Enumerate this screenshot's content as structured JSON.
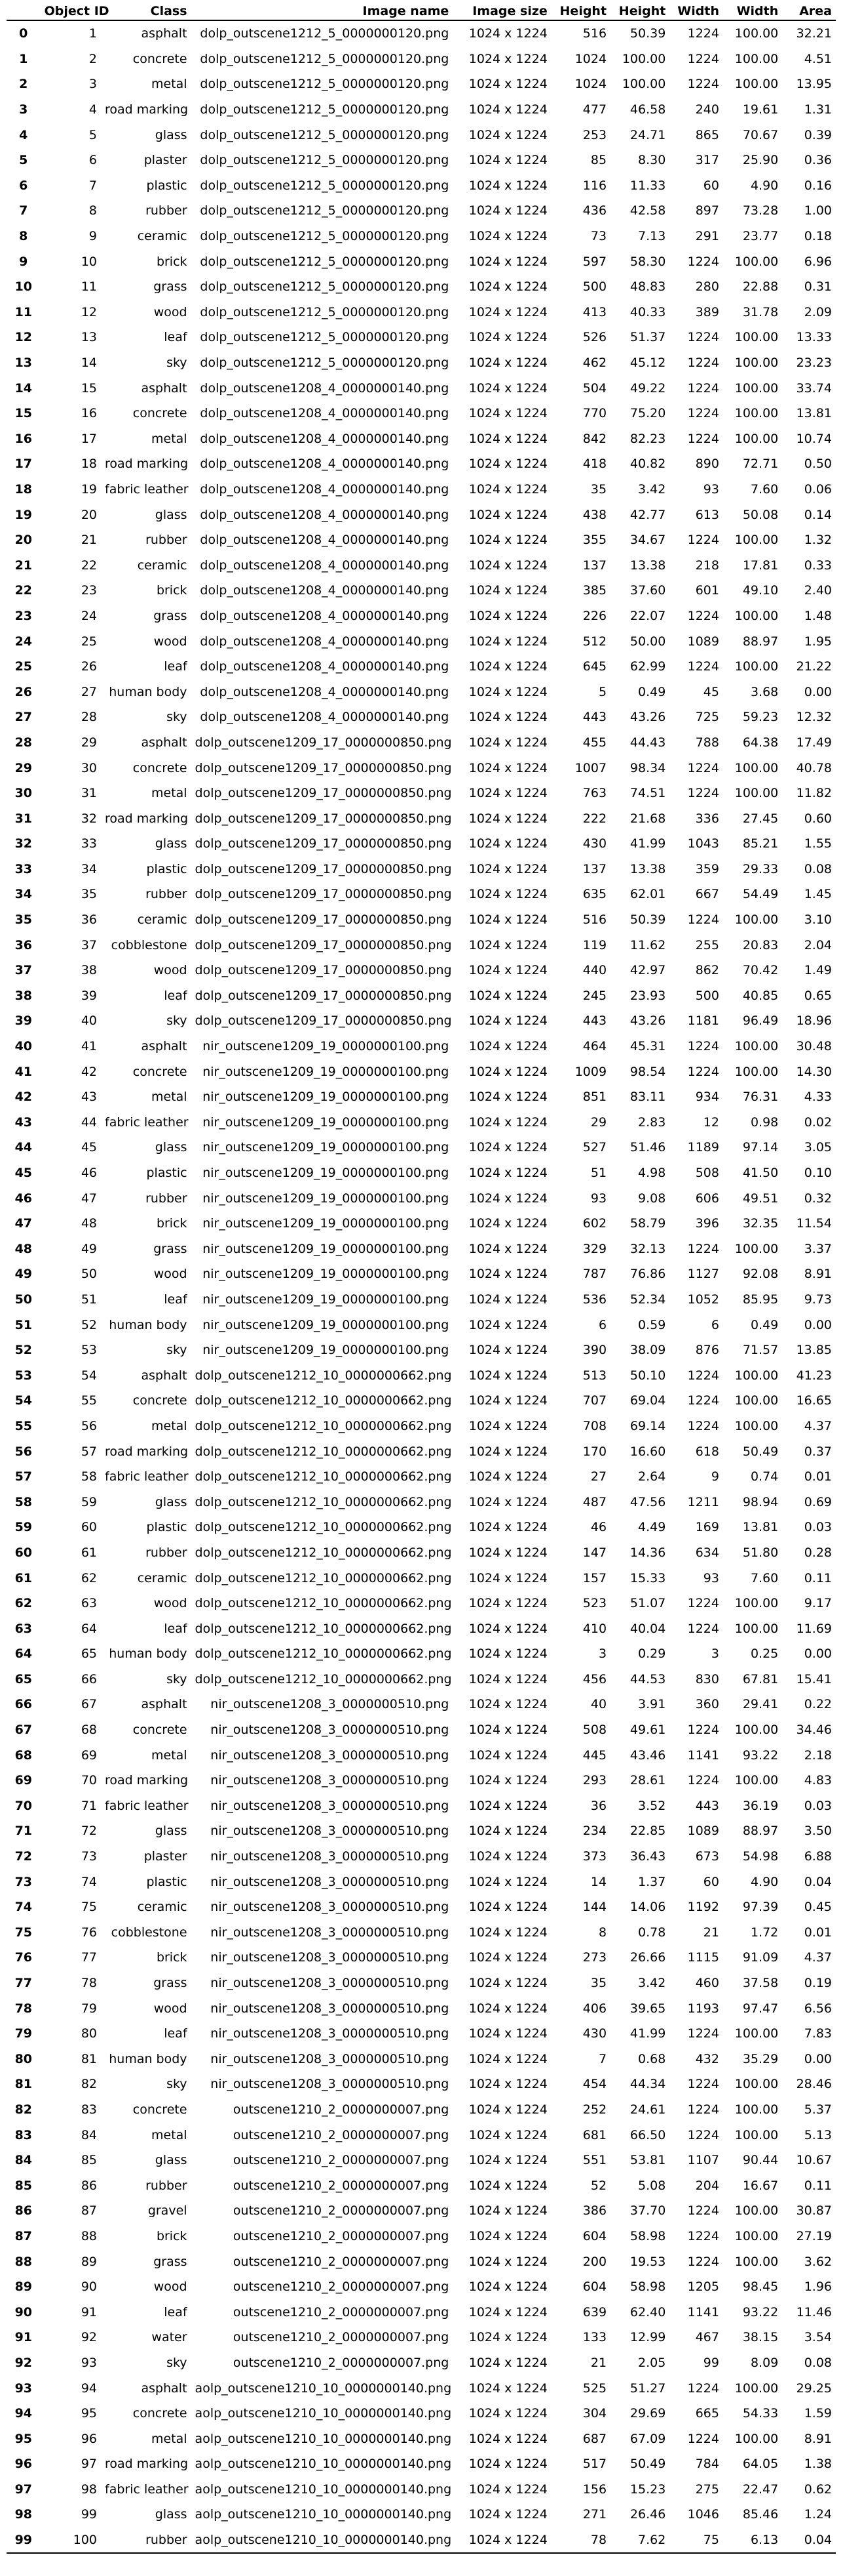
{
  "columns": [
    "",
    "Object ID",
    "Class",
    "Image name",
    "Image size",
    "Height",
    "Height",
    "Width",
    "Width",
    "Area"
  ],
  "rows": [
    [
      "0",
      "1",
      "asphalt",
      "dolp_outscene1212_5_0000000120.png",
      "1024 x 1224",
      "516",
      "50.39",
      "1224",
      "100.00",
      "32.21"
    ],
    [
      "1",
      "2",
      "concrete",
      "dolp_outscene1212_5_0000000120.png",
      "1024 x 1224",
      "1024",
      "100.00",
      "1224",
      "100.00",
      "4.51"
    ],
    [
      "2",
      "3",
      "metal",
      "dolp_outscene1212_5_0000000120.png",
      "1024 x 1224",
      "1024",
      "100.00",
      "1224",
      "100.00",
      "13.95"
    ],
    [
      "3",
      "4",
      "road marking",
      "dolp_outscene1212_5_0000000120.png",
      "1024 x 1224",
      "477",
      "46.58",
      "240",
      "19.61",
      "1.31"
    ],
    [
      "4",
      "5",
      "glass",
      "dolp_outscene1212_5_0000000120.png",
      "1024 x 1224",
      "253",
      "24.71",
      "865",
      "70.67",
      "0.39"
    ],
    [
      "5",
      "6",
      "plaster",
      "dolp_outscene1212_5_0000000120.png",
      "1024 x 1224",
      "85",
      "8.30",
      "317",
      "25.90",
      "0.36"
    ],
    [
      "6",
      "7",
      "plastic",
      "dolp_outscene1212_5_0000000120.png",
      "1024 x 1224",
      "116",
      "11.33",
      "60",
      "4.90",
      "0.16"
    ],
    [
      "7",
      "8",
      "rubber",
      "dolp_outscene1212_5_0000000120.png",
      "1024 x 1224",
      "436",
      "42.58",
      "897",
      "73.28",
      "1.00"
    ],
    [
      "8",
      "9",
      "ceramic",
      "dolp_outscene1212_5_0000000120.png",
      "1024 x 1224",
      "73",
      "7.13",
      "291",
      "23.77",
      "0.18"
    ],
    [
      "9",
      "10",
      "brick",
      "dolp_outscene1212_5_0000000120.png",
      "1024 x 1224",
      "597",
      "58.30",
      "1224",
      "100.00",
      "6.96"
    ],
    [
      "10",
      "11",
      "grass",
      "dolp_outscene1212_5_0000000120.png",
      "1024 x 1224",
      "500",
      "48.83",
      "280",
      "22.88",
      "0.31"
    ],
    [
      "11",
      "12",
      "wood",
      "dolp_outscene1212_5_0000000120.png",
      "1024 x 1224",
      "413",
      "40.33",
      "389",
      "31.78",
      "2.09"
    ],
    [
      "12",
      "13",
      "leaf",
      "dolp_outscene1212_5_0000000120.png",
      "1024 x 1224",
      "526",
      "51.37",
      "1224",
      "100.00",
      "13.33"
    ],
    [
      "13",
      "14",
      "sky",
      "dolp_outscene1212_5_0000000120.png",
      "1024 x 1224",
      "462",
      "45.12",
      "1224",
      "100.00",
      "23.23"
    ],
    [
      "14",
      "15",
      "asphalt",
      "dolp_outscene1208_4_0000000140.png",
      "1024 x 1224",
      "504",
      "49.22",
      "1224",
      "100.00",
      "33.74"
    ],
    [
      "15",
      "16",
      "concrete",
      "dolp_outscene1208_4_0000000140.png",
      "1024 x 1224",
      "770",
      "75.20",
      "1224",
      "100.00",
      "13.81"
    ],
    [
      "16",
      "17",
      "metal",
      "dolp_outscene1208_4_0000000140.png",
      "1024 x 1224",
      "842",
      "82.23",
      "1224",
      "100.00",
      "10.74"
    ],
    [
      "17",
      "18",
      "road marking",
      "dolp_outscene1208_4_0000000140.png",
      "1024 x 1224",
      "418",
      "40.82",
      "890",
      "72.71",
      "0.50"
    ],
    [
      "18",
      "19",
      "fabric leather",
      "dolp_outscene1208_4_0000000140.png",
      "1024 x 1224",
      "35",
      "3.42",
      "93",
      "7.60",
      "0.06"
    ],
    [
      "19",
      "20",
      "glass",
      "dolp_outscene1208_4_0000000140.png",
      "1024 x 1224",
      "438",
      "42.77",
      "613",
      "50.08",
      "0.14"
    ],
    [
      "20",
      "21",
      "rubber",
      "dolp_outscene1208_4_0000000140.png",
      "1024 x 1224",
      "355",
      "34.67",
      "1224",
      "100.00",
      "1.32"
    ],
    [
      "21",
      "22",
      "ceramic",
      "dolp_outscene1208_4_0000000140.png",
      "1024 x 1224",
      "137",
      "13.38",
      "218",
      "17.81",
      "0.33"
    ],
    [
      "22",
      "23",
      "brick",
      "dolp_outscene1208_4_0000000140.png",
      "1024 x 1224",
      "385",
      "37.60",
      "601",
      "49.10",
      "2.40"
    ],
    [
      "23",
      "24",
      "grass",
      "dolp_outscene1208_4_0000000140.png",
      "1024 x 1224",
      "226",
      "22.07",
      "1224",
      "100.00",
      "1.48"
    ],
    [
      "24",
      "25",
      "wood",
      "dolp_outscene1208_4_0000000140.png",
      "1024 x 1224",
      "512",
      "50.00",
      "1089",
      "88.97",
      "1.95"
    ],
    [
      "25",
      "26",
      "leaf",
      "dolp_outscene1208_4_0000000140.png",
      "1024 x 1224",
      "645",
      "62.99",
      "1224",
      "100.00",
      "21.22"
    ],
    [
      "26",
      "27",
      "human body",
      "dolp_outscene1208_4_0000000140.png",
      "1024 x 1224",
      "5",
      "0.49",
      "45",
      "3.68",
      "0.00"
    ],
    [
      "27",
      "28",
      "sky",
      "dolp_outscene1208_4_0000000140.png",
      "1024 x 1224",
      "443",
      "43.26",
      "725",
      "59.23",
      "12.32"
    ],
    [
      "28",
      "29",
      "asphalt",
      "dolp_outscene1209_17_0000000850.png",
      "1024 x 1224",
      "455",
      "44.43",
      "788",
      "64.38",
      "17.49"
    ],
    [
      "29",
      "30",
      "concrete",
      "dolp_outscene1209_17_0000000850.png",
      "1024 x 1224",
      "1007",
      "98.34",
      "1224",
      "100.00",
      "40.78"
    ],
    [
      "30",
      "31",
      "metal",
      "dolp_outscene1209_17_0000000850.png",
      "1024 x 1224",
      "763",
      "74.51",
      "1224",
      "100.00",
      "11.82"
    ],
    [
      "31",
      "32",
      "road marking",
      "dolp_outscene1209_17_0000000850.png",
      "1024 x 1224",
      "222",
      "21.68",
      "336",
      "27.45",
      "0.60"
    ],
    [
      "32",
      "33",
      "glass",
      "dolp_outscene1209_17_0000000850.png",
      "1024 x 1224",
      "430",
      "41.99",
      "1043",
      "85.21",
      "1.55"
    ],
    [
      "33",
      "34",
      "plastic",
      "dolp_outscene1209_17_0000000850.png",
      "1024 x 1224",
      "137",
      "13.38",
      "359",
      "29.33",
      "0.08"
    ],
    [
      "34",
      "35",
      "rubber",
      "dolp_outscene1209_17_0000000850.png",
      "1024 x 1224",
      "635",
      "62.01",
      "667",
      "54.49",
      "1.45"
    ],
    [
      "35",
      "36",
      "ceramic",
      "dolp_outscene1209_17_0000000850.png",
      "1024 x 1224",
      "516",
      "50.39",
      "1224",
      "100.00",
      "3.10"
    ],
    [
      "36",
      "37",
      "cobblestone",
      "dolp_outscene1209_17_0000000850.png",
      "1024 x 1224",
      "119",
      "11.62",
      "255",
      "20.83",
      "2.04"
    ],
    [
      "37",
      "38",
      "wood",
      "dolp_outscene1209_17_0000000850.png",
      "1024 x 1224",
      "440",
      "42.97",
      "862",
      "70.42",
      "1.49"
    ],
    [
      "38",
      "39",
      "leaf",
      "dolp_outscene1209_17_0000000850.png",
      "1024 x 1224",
      "245",
      "23.93",
      "500",
      "40.85",
      "0.65"
    ],
    [
      "39",
      "40",
      "sky",
      "dolp_outscene1209_17_0000000850.png",
      "1024 x 1224",
      "443",
      "43.26",
      "1181",
      "96.49",
      "18.96"
    ],
    [
      "40",
      "41",
      "asphalt",
      "nir_outscene1209_19_0000000100.png",
      "1024 x 1224",
      "464",
      "45.31",
      "1224",
      "100.00",
      "30.48"
    ],
    [
      "41",
      "42",
      "concrete",
      "nir_outscene1209_19_0000000100.png",
      "1024 x 1224",
      "1009",
      "98.54",
      "1224",
      "100.00",
      "14.30"
    ],
    [
      "42",
      "43",
      "metal",
      "nir_outscene1209_19_0000000100.png",
      "1024 x 1224",
      "851",
      "83.11",
      "934",
      "76.31",
      "4.33"
    ],
    [
      "43",
      "44",
      "fabric leather",
      "nir_outscene1209_19_0000000100.png",
      "1024 x 1224",
      "29",
      "2.83",
      "12",
      "0.98",
      "0.02"
    ],
    [
      "44",
      "45",
      "glass",
      "nir_outscene1209_19_0000000100.png",
      "1024 x 1224",
      "527",
      "51.46",
      "1189",
      "97.14",
      "3.05"
    ],
    [
      "45",
      "46",
      "plastic",
      "nir_outscene1209_19_0000000100.png",
      "1024 x 1224",
      "51",
      "4.98",
      "508",
      "41.50",
      "0.10"
    ],
    [
      "46",
      "47",
      "rubber",
      "nir_outscene1209_19_0000000100.png",
      "1024 x 1224",
      "93",
      "9.08",
      "606",
      "49.51",
      "0.32"
    ],
    [
      "47",
      "48",
      "brick",
      "nir_outscene1209_19_0000000100.png",
      "1024 x 1224",
      "602",
      "58.79",
      "396",
      "32.35",
      "11.54"
    ],
    [
      "48",
      "49",
      "grass",
      "nir_outscene1209_19_0000000100.png",
      "1024 x 1224",
      "329",
      "32.13",
      "1224",
      "100.00",
      "3.37"
    ],
    [
      "49",
      "50",
      "wood",
      "nir_outscene1209_19_0000000100.png",
      "1024 x 1224",
      "787",
      "76.86",
      "1127",
      "92.08",
      "8.91"
    ],
    [
      "50",
      "51",
      "leaf",
      "nir_outscene1209_19_0000000100.png",
      "1024 x 1224",
      "536",
      "52.34",
      "1052",
      "85.95",
      "9.73"
    ],
    [
      "51",
      "52",
      "human body",
      "nir_outscene1209_19_0000000100.png",
      "1024 x 1224",
      "6",
      "0.59",
      "6",
      "0.49",
      "0.00"
    ],
    [
      "52",
      "53",
      "sky",
      "nir_outscene1209_19_0000000100.png",
      "1024 x 1224",
      "390",
      "38.09",
      "876",
      "71.57",
      "13.85"
    ],
    [
      "53",
      "54",
      "asphalt",
      "dolp_outscene1212_10_0000000662.png",
      "1024 x 1224",
      "513",
      "50.10",
      "1224",
      "100.00",
      "41.23"
    ],
    [
      "54",
      "55",
      "concrete",
      "dolp_outscene1212_10_0000000662.png",
      "1024 x 1224",
      "707",
      "69.04",
      "1224",
      "100.00",
      "16.65"
    ],
    [
      "55",
      "56",
      "metal",
      "dolp_outscene1212_10_0000000662.png",
      "1024 x 1224",
      "708",
      "69.14",
      "1224",
      "100.00",
      "4.37"
    ],
    [
      "56",
      "57",
      "road marking",
      "dolp_outscene1212_10_0000000662.png",
      "1024 x 1224",
      "170",
      "16.60",
      "618",
      "50.49",
      "0.37"
    ],
    [
      "57",
      "58",
      "fabric leather",
      "dolp_outscene1212_10_0000000662.png",
      "1024 x 1224",
      "27",
      "2.64",
      "9",
      "0.74",
      "0.01"
    ],
    [
      "58",
      "59",
      "glass",
      "dolp_outscene1212_10_0000000662.png",
      "1024 x 1224",
      "487",
      "47.56",
      "1211",
      "98.94",
      "0.69"
    ],
    [
      "59",
      "60",
      "plastic",
      "dolp_outscene1212_10_0000000662.png",
      "1024 x 1224",
      "46",
      "4.49",
      "169",
      "13.81",
      "0.03"
    ],
    [
      "60",
      "61",
      "rubber",
      "dolp_outscene1212_10_0000000662.png",
      "1024 x 1224",
      "147",
      "14.36",
      "634",
      "51.80",
      "0.28"
    ],
    [
      "61",
      "62",
      "ceramic",
      "dolp_outscene1212_10_0000000662.png",
      "1024 x 1224",
      "157",
      "15.33",
      "93",
      "7.60",
      "0.11"
    ],
    [
      "62",
      "63",
      "wood",
      "dolp_outscene1212_10_0000000662.png",
      "1024 x 1224",
      "523",
      "51.07",
      "1224",
      "100.00",
      "9.17"
    ],
    [
      "63",
      "64",
      "leaf",
      "dolp_outscene1212_10_0000000662.png",
      "1024 x 1224",
      "410",
      "40.04",
      "1224",
      "100.00",
      "11.69"
    ],
    [
      "64",
      "65",
      "human body",
      "dolp_outscene1212_10_0000000662.png",
      "1024 x 1224",
      "3",
      "0.29",
      "3",
      "0.25",
      "0.00"
    ],
    [
      "65",
      "66",
      "sky",
      "dolp_outscene1212_10_0000000662.png",
      "1024 x 1224",
      "456",
      "44.53",
      "830",
      "67.81",
      "15.41"
    ],
    [
      "66",
      "67",
      "asphalt",
      "nir_outscene1208_3_0000000510.png",
      "1024 x 1224",
      "40",
      "3.91",
      "360",
      "29.41",
      "0.22"
    ],
    [
      "67",
      "68",
      "concrete",
      "nir_outscene1208_3_0000000510.png",
      "1024 x 1224",
      "508",
      "49.61",
      "1224",
      "100.00",
      "34.46"
    ],
    [
      "68",
      "69",
      "metal",
      "nir_outscene1208_3_0000000510.png",
      "1024 x 1224",
      "445",
      "43.46",
      "1141",
      "93.22",
      "2.18"
    ],
    [
      "69",
      "70",
      "road marking",
      "nir_outscene1208_3_0000000510.png",
      "1024 x 1224",
      "293",
      "28.61",
      "1224",
      "100.00",
      "4.83"
    ],
    [
      "70",
      "71",
      "fabric leather",
      "nir_outscene1208_3_0000000510.png",
      "1024 x 1224",
      "36",
      "3.52",
      "443",
      "36.19",
      "0.03"
    ],
    [
      "71",
      "72",
      "glass",
      "nir_outscene1208_3_0000000510.png",
      "1024 x 1224",
      "234",
      "22.85",
      "1089",
      "88.97",
      "3.50"
    ],
    [
      "72",
      "73",
      "plaster",
      "nir_outscene1208_3_0000000510.png",
      "1024 x 1224",
      "373",
      "36.43",
      "673",
      "54.98",
      "6.88"
    ],
    [
      "73",
      "74",
      "plastic",
      "nir_outscene1208_3_0000000510.png",
      "1024 x 1224",
      "14",
      "1.37",
      "60",
      "4.90",
      "0.04"
    ],
    [
      "74",
      "75",
      "ceramic",
      "nir_outscene1208_3_0000000510.png",
      "1024 x 1224",
      "144",
      "14.06",
      "1192",
      "97.39",
      "0.45"
    ],
    [
      "75",
      "76",
      "cobblestone",
      "nir_outscene1208_3_0000000510.png",
      "1024 x 1224",
      "8",
      "0.78",
      "21",
      "1.72",
      "0.01"
    ],
    [
      "76",
      "77",
      "brick",
      "nir_outscene1208_3_0000000510.png",
      "1024 x 1224",
      "273",
      "26.66",
      "1115",
      "91.09",
      "4.37"
    ],
    [
      "77",
      "78",
      "grass",
      "nir_outscene1208_3_0000000510.png",
      "1024 x 1224",
      "35",
      "3.42",
      "460",
      "37.58",
      "0.19"
    ],
    [
      "78",
      "79",
      "wood",
      "nir_outscene1208_3_0000000510.png",
      "1024 x 1224",
      "406",
      "39.65",
      "1193",
      "97.47",
      "6.56"
    ],
    [
      "79",
      "80",
      "leaf",
      "nir_outscene1208_3_0000000510.png",
      "1024 x 1224",
      "430",
      "41.99",
      "1224",
      "100.00",
      "7.83"
    ],
    [
      "80",
      "81",
      "human body",
      "nir_outscene1208_3_0000000510.png",
      "1024 x 1224",
      "7",
      "0.68",
      "432",
      "35.29",
      "0.00"
    ],
    [
      "81",
      "82",
      "sky",
      "nir_outscene1208_3_0000000510.png",
      "1024 x 1224",
      "454",
      "44.34",
      "1224",
      "100.00",
      "28.46"
    ],
    [
      "82",
      "83",
      "concrete",
      "outscene1210_2_0000000007.png",
      "1024 x 1224",
      "252",
      "24.61",
      "1224",
      "100.00",
      "5.37"
    ],
    [
      "83",
      "84",
      "metal",
      "outscene1210_2_0000000007.png",
      "1024 x 1224",
      "681",
      "66.50",
      "1224",
      "100.00",
      "5.13"
    ],
    [
      "84",
      "85",
      "glass",
      "outscene1210_2_0000000007.png",
      "1024 x 1224",
      "551",
      "53.81",
      "1107",
      "90.44",
      "10.67"
    ],
    [
      "85",
      "86",
      "rubber",
      "outscene1210_2_0000000007.png",
      "1024 x 1224",
      "52",
      "5.08",
      "204",
      "16.67",
      "0.11"
    ],
    [
      "86",
      "87",
      "gravel",
      "outscene1210_2_0000000007.png",
      "1024 x 1224",
      "386",
      "37.70",
      "1224",
      "100.00",
      "30.87"
    ],
    [
      "87",
      "88",
      "brick",
      "outscene1210_2_0000000007.png",
      "1024 x 1224",
      "604",
      "58.98",
      "1224",
      "100.00",
      "27.19"
    ],
    [
      "88",
      "89",
      "grass",
      "outscene1210_2_0000000007.png",
      "1024 x 1224",
      "200",
      "19.53",
      "1224",
      "100.00",
      "3.62"
    ],
    [
      "89",
      "90",
      "wood",
      "outscene1210_2_0000000007.png",
      "1024 x 1224",
      "604",
      "58.98",
      "1205",
      "98.45",
      "1.96"
    ],
    [
      "90",
      "91",
      "leaf",
      "outscene1210_2_0000000007.png",
      "1024 x 1224",
      "639",
      "62.40",
      "1141",
      "93.22",
      "11.46"
    ],
    [
      "91",
      "92",
      "water",
      "outscene1210_2_0000000007.png",
      "1024 x 1224",
      "133",
      "12.99",
      "467",
      "38.15",
      "3.54"
    ],
    [
      "92",
      "93",
      "sky",
      "outscene1210_2_0000000007.png",
      "1024 x 1224",
      "21",
      "2.05",
      "99",
      "8.09",
      "0.08"
    ],
    [
      "93",
      "94",
      "asphalt",
      "aolp_outscene1210_10_0000000140.png",
      "1024 x 1224",
      "525",
      "51.27",
      "1224",
      "100.00",
      "29.25"
    ],
    [
      "94",
      "95",
      "concrete",
      "aolp_outscene1210_10_0000000140.png",
      "1024 x 1224",
      "304",
      "29.69",
      "665",
      "54.33",
      "1.59"
    ],
    [
      "95",
      "96",
      "metal",
      "aolp_outscene1210_10_0000000140.png",
      "1024 x 1224",
      "687",
      "67.09",
      "1224",
      "100.00",
      "8.91"
    ],
    [
      "96",
      "97",
      "road marking",
      "aolp_outscene1210_10_0000000140.png",
      "1024 x 1224",
      "517",
      "50.49",
      "784",
      "64.05",
      "1.38"
    ],
    [
      "97",
      "98",
      "fabric leather",
      "aolp_outscene1210_10_0000000140.png",
      "1024 x 1224",
      "156",
      "15.23",
      "275",
      "22.47",
      "0.62"
    ],
    [
      "98",
      "99",
      "glass",
      "aolp_outscene1210_10_0000000140.png",
      "1024 x 1224",
      "271",
      "26.46",
      "1046",
      "85.46",
      "1.24"
    ],
    [
      "99",
      "100",
      "rubber",
      "aolp_outscene1210_10_0000000140.png",
      "1024 x 1224",
      "78",
      "7.62",
      "75",
      "6.13",
      "0.04"
    ]
  ]
}
